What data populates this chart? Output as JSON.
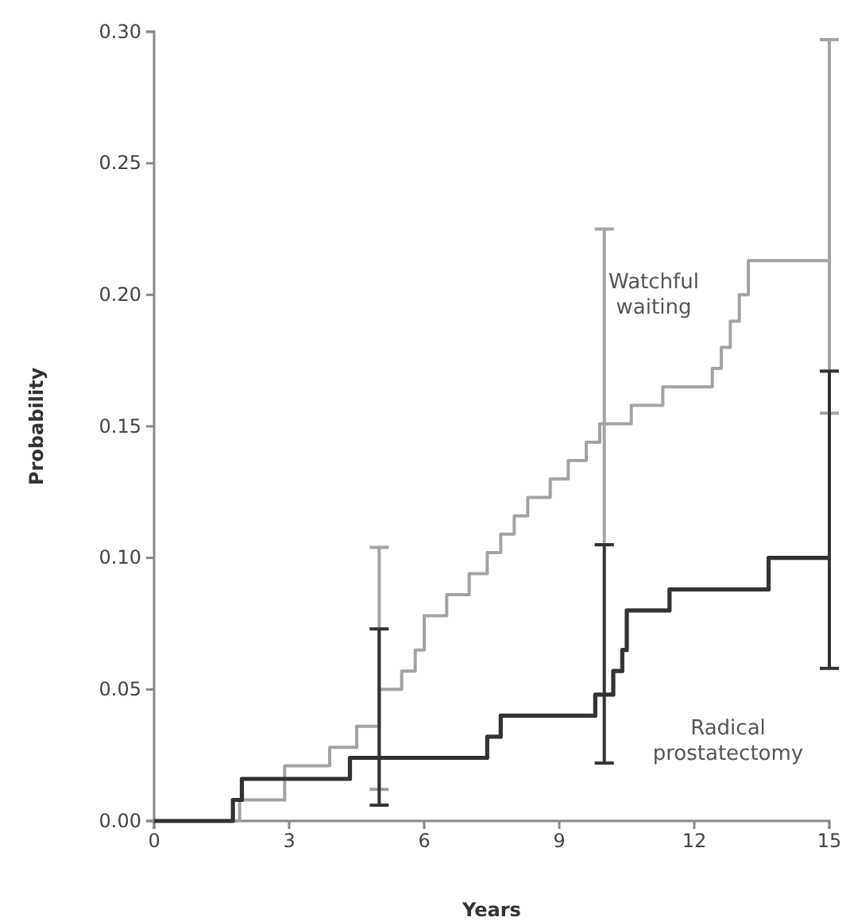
{
  "chart_data": {
    "type": "step",
    "xlabel": "Years",
    "ylabel": "Probability",
    "xlim": [
      0,
      15
    ],
    "xticks": [
      0,
      3,
      6,
      9,
      12,
      15
    ],
    "ylim": [
      0,
      0.3
    ],
    "yticks": [
      {
        "value": 0,
        "label": "0.00"
      },
      {
        "value": 0.05,
        "label": "0.05"
      },
      {
        "value": 0.1,
        "label": "0.10"
      },
      {
        "value": 0.15,
        "label": "0.15"
      },
      {
        "value": 0.2,
        "label": "0.20"
      },
      {
        "value": 0.25,
        "label": "0.25"
      },
      {
        "value": 0.3,
        "label": "0.30"
      }
    ],
    "grid": false,
    "legend": false,
    "marker": "none",
    "line_style": "solid",
    "series": [
      {
        "name": "Watchful waiting",
        "color": "#a3a3a3",
        "x": [
          0,
          1.9,
          2.9,
          3.9,
          4.5,
          5,
          5.5,
          5.8,
          6,
          6.5,
          7,
          7.4,
          7.7,
          8,
          8.3,
          8.8,
          9.2,
          9.6,
          9.9,
          10,
          10.6,
          11.3,
          12.4,
          12.6,
          12.8,
          13,
          13.2,
          15
        ],
        "values": [
          0,
          0.008,
          0.021,
          0.028,
          0.036,
          0.05,
          0.057,
          0.065,
          0.078,
          0.086,
          0.094,
          0.102,
          0.109,
          0.116,
          0.123,
          0.13,
          0.137,
          0.144,
          0.151,
          0.151,
          0.158,
          0.165,
          0.172,
          0.18,
          0.19,
          0.2,
          0.213,
          0.213
        ],
        "errors": [
          null,
          null,
          null,
          null,
          null,
          [
            0.012,
            0.104
          ],
          null,
          null,
          null,
          null,
          null,
          null,
          null,
          null,
          null,
          null,
          null,
          null,
          null,
          [
            0.105,
            0.225
          ],
          null,
          null,
          null,
          null,
          null,
          null,
          null,
          [
            0.155,
            0.297
          ]
        ]
      },
      {
        "name": "Radical prostatectomy",
        "color": "#333333",
        "x": [
          0,
          1.75,
          1.95,
          4.35,
          5,
          7.4,
          7.7,
          9.8,
          10,
          10.2,
          10.4,
          10.5,
          11.45,
          13.65,
          15
        ],
        "values": [
          0,
          0.008,
          0.016,
          0.024,
          0.024,
          0.032,
          0.04,
          0.048,
          0.048,
          0.057,
          0.065,
          0.08,
          0.088,
          0.1,
          0.1
        ],
        "errors": [
          null,
          null,
          null,
          null,
          [
            0.006,
            0.073
          ],
          null,
          null,
          null,
          [
            0.022,
            0.105
          ],
          null,
          null,
          null,
          null,
          null,
          [
            0.058,
            0.171
          ]
        ]
      }
    ]
  }
}
